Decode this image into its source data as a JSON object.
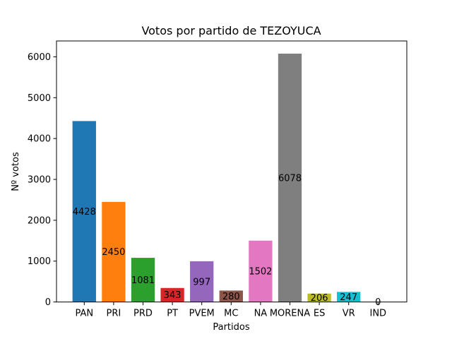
{
  "chart_data": {
    "type": "bar",
    "title": "Votos por partido de TEZOYUCA",
    "xlabel": "Partidos",
    "ylabel": "Nº votos",
    "categories": [
      "PAN",
      "PRI",
      "PRD",
      "PT",
      "PVEM",
      "MC",
      "NA",
      "MORENA",
      "ES",
      "VR",
      "IND"
    ],
    "values": [
      4428,
      2450,
      1081,
      343,
      997,
      280,
      1502,
      6078,
      206,
      247,
      0
    ],
    "colors": [
      "#1f77b4",
      "#ff7f0e",
      "#2ca02c",
      "#d62728",
      "#9467bd",
      "#8c564b",
      "#e377c2",
      "#7f7f7f",
      "#bcbd22",
      "#17becf",
      "#1f77b4"
    ],
    "ylim": [
      0,
      6388
    ],
    "yticks": [
      0,
      1000,
      2000,
      3000,
      4000,
      5000,
      6000
    ],
    "grid": false,
    "legend": false
  }
}
